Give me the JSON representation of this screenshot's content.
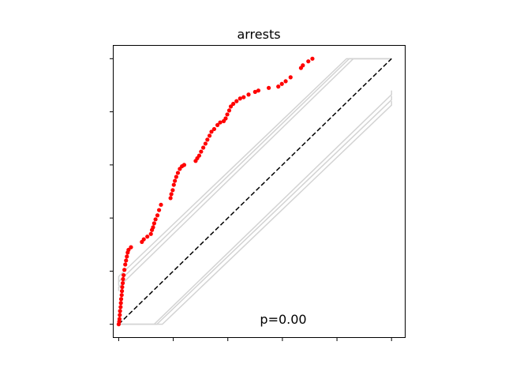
{
  "chart_data": {
    "type": "scatter",
    "title": "arrests",
    "xlabel": "",
    "ylabel": "",
    "xlim": [
      -0.02,
      1.05
    ],
    "ylim": [
      -0.05,
      1.05
    ],
    "xticks": [
      0,
      0.2,
      0.4,
      0.6,
      0.8,
      1.0
    ],
    "yticks": [
      0,
      0.2,
      0.4,
      0.6,
      0.8,
      1.0
    ],
    "tick_labels_visible": false,
    "grid": false,
    "annotation": "p=0.00",
    "reference_line": {
      "x": [
        0,
        1
      ],
      "y": [
        0,
        1
      ],
      "style": "dashed",
      "color": "#000000"
    },
    "envelope_color": "#d3d3d3",
    "point_color": "#ff0000",
    "envelopes": [
      {
        "x": [
          0,
          0,
          0.835,
          1.0
        ],
        "y": [
          0.16,
          0.18,
          1.0,
          1.0
        ]
      },
      {
        "x": [
          0,
          0,
          0.845,
          1.0
        ],
        "y": [
          0.145,
          0.16,
          1.0,
          1.0
        ]
      },
      {
        "x": [
          0,
          0,
          0.86,
          1.0
        ],
        "y": [
          0.125,
          0.14,
          1.0,
          1.0
        ]
      },
      {
        "x": [
          0,
          0.13,
          1.0,
          1.0
        ],
        "y": [
          0,
          0,
          0.865,
          0.88
        ]
      },
      {
        "x": [
          0,
          0.14,
          1.0,
          1.0
        ],
        "y": [
          0,
          0,
          0.845,
          0.86
        ]
      },
      {
        "x": [
          0,
          0.16,
          1.0,
          1.0
        ],
        "y": [
          0,
          0,
          0.825,
          0.84
        ]
      }
    ],
    "points": [
      [
        0.0,
        0.0
      ],
      [
        0.002,
        0.01
      ],
      [
        0.003,
        0.02
      ],
      [
        0.004,
        0.035
      ],
      [
        0.005,
        0.05
      ],
      [
        0.007,
        0.065
      ],
      [
        0.008,
        0.08
      ],
      [
        0.009,
        0.095
      ],
      [
        0.011,
        0.11
      ],
      [
        0.012,
        0.125
      ],
      [
        0.013,
        0.14
      ],
      [
        0.015,
        0.155
      ],
      [
        0.016,
        0.17
      ],
      [
        0.018,
        0.185
      ],
      [
        0.021,
        0.205
      ],
      [
        0.024,
        0.225
      ],
      [
        0.027,
        0.24
      ],
      [
        0.03,
        0.255
      ],
      [
        0.033,
        0.27
      ],
      [
        0.036,
        0.28
      ],
      [
        0.045,
        0.29
      ],
      [
        0.085,
        0.31
      ],
      [
        0.092,
        0.32
      ],
      [
        0.105,
        0.33
      ],
      [
        0.118,
        0.34
      ],
      [
        0.122,
        0.355
      ],
      [
        0.126,
        0.365
      ],
      [
        0.13,
        0.38
      ],
      [
        0.135,
        0.395
      ],
      [
        0.142,
        0.41
      ],
      [
        0.148,
        0.43
      ],
      [
        0.155,
        0.45
      ],
      [
        0.19,
        0.475
      ],
      [
        0.193,
        0.49
      ],
      [
        0.198,
        0.505
      ],
      [
        0.202,
        0.525
      ],
      [
        0.206,
        0.54
      ],
      [
        0.211,
        0.555
      ],
      [
        0.217,
        0.57
      ],
      [
        0.224,
        0.585
      ],
      [
        0.232,
        0.595
      ],
      [
        0.24,
        0.6
      ],
      [
        0.282,
        0.615
      ],
      [
        0.288,
        0.625
      ],
      [
        0.295,
        0.635
      ],
      [
        0.302,
        0.65
      ],
      [
        0.31,
        0.665
      ],
      [
        0.318,
        0.68
      ],
      [
        0.325,
        0.695
      ],
      [
        0.333,
        0.71
      ],
      [
        0.34,
        0.725
      ],
      [
        0.35,
        0.735
      ],
      [
        0.362,
        0.75
      ],
      [
        0.372,
        0.76
      ],
      [
        0.385,
        0.765
      ],
      [
        0.392,
        0.775
      ],
      [
        0.398,
        0.79
      ],
      [
        0.405,
        0.805
      ],
      [
        0.411,
        0.82
      ],
      [
        0.42,
        0.83
      ],
      [
        0.432,
        0.84
      ],
      [
        0.445,
        0.85
      ],
      [
        0.458,
        0.855
      ],
      [
        0.476,
        0.865
      ],
      [
        0.5,
        0.875
      ],
      [
        0.512,
        0.88
      ],
      [
        0.55,
        0.89
      ],
      [
        0.585,
        0.895
      ],
      [
        0.598,
        0.905
      ],
      [
        0.612,
        0.915
      ],
      [
        0.63,
        0.93
      ],
      [
        0.668,
        0.965
      ],
      [
        0.675,
        0.975
      ],
      [
        0.695,
        0.99
      ],
      [
        0.71,
        1.0
      ]
    ]
  }
}
